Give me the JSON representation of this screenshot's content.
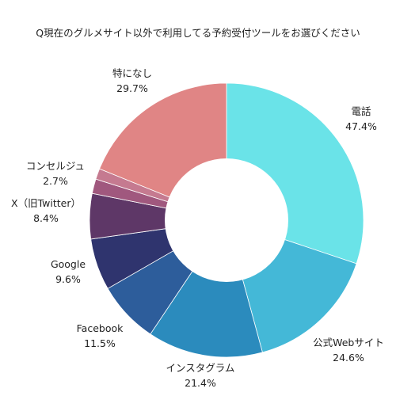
{
  "chart_data": {
    "type": "pie",
    "variant": "donut",
    "title": "Q現在のグルメサイト以外で利用してる予約受付ツールをお選びください",
    "unit": "%",
    "slices": [
      {
        "label": "電話",
        "value": 47.4,
        "display": "47.4%",
        "color": "#6ae3e8"
      },
      {
        "label": "公式Webサイト",
        "value": 24.6,
        "display": "24.6%",
        "color": "#44b8d7"
      },
      {
        "label": "インスタグラム",
        "value": 21.4,
        "display": "21.4%",
        "color": "#2b8bbd"
      },
      {
        "label": "Facebook",
        "value": 11.5,
        "display": "11.5%",
        "color": "#2d5d9b"
      },
      {
        "label": "Google",
        "value": 9.6,
        "display": "9.6%",
        "color": "#2f346e"
      },
      {
        "label": "X（旧Twitter）",
        "value": 8.4,
        "display": "8.4%",
        "color": "#5e3767"
      },
      {
        "label": "コンセルジュ",
        "value": 2.7,
        "display": "2.7%",
        "color": "#a0587e"
      },
      {
        "label": "",
        "value": 2.0,
        "display": "",
        "color": "#c57a90"
      },
      {
        "label": "特になし",
        "value": 29.7,
        "display": "29.7%",
        "color": "#e08585"
      }
    ]
  }
}
